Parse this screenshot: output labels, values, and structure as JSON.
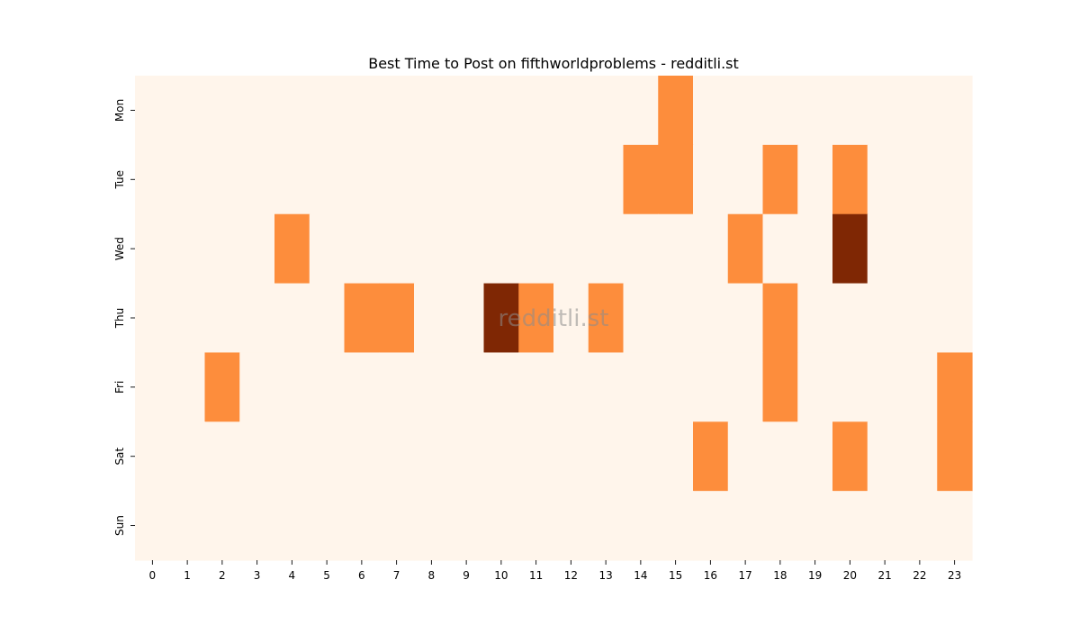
{
  "chart_data": {
    "type": "heatmap",
    "title": "Best Time to Post on fifthworldproblems - redditli.st",
    "xlabel": "",
    "ylabel": "",
    "x_categories": [
      "0",
      "1",
      "2",
      "3",
      "4",
      "5",
      "6",
      "7",
      "8",
      "9",
      "10",
      "11",
      "12",
      "13",
      "14",
      "15",
      "16",
      "17",
      "18",
      "19",
      "20",
      "21",
      "22",
      "23"
    ],
    "y_categories": [
      "Mon",
      "Tue",
      "Wed",
      "Thu",
      "Fri",
      "Sat",
      "Sun"
    ],
    "values": [
      [
        0,
        0,
        0,
        0,
        0,
        0,
        0,
        0,
        0,
        0,
        0,
        0,
        0,
        0,
        0,
        1,
        0,
        0,
        0,
        0,
        0,
        0,
        0,
        0
      ],
      [
        0,
        0,
        0,
        0,
        0,
        0,
        0,
        0,
        0,
        0,
        0,
        0,
        0,
        0,
        1,
        1,
        0,
        0,
        1,
        0,
        1,
        0,
        0,
        0
      ],
      [
        0,
        0,
        0,
        0,
        1,
        0,
        0,
        0,
        0,
        0,
        0,
        0,
        0,
        0,
        0,
        0,
        0,
        1,
        0,
        0,
        2,
        0,
        0,
        0
      ],
      [
        0,
        0,
        0,
        0,
        0,
        0,
        1,
        1,
        0,
        0,
        2,
        1,
        0,
        1,
        0,
        0,
        0,
        0,
        1,
        0,
        0,
        0,
        0,
        0
      ],
      [
        0,
        0,
        1,
        0,
        0,
        0,
        0,
        0,
        0,
        0,
        0,
        0,
        0,
        0,
        0,
        0,
        0,
        0,
        1,
        0,
        0,
        0,
        0,
        1
      ],
      [
        0,
        0,
        0,
        0,
        0,
        0,
        0,
        0,
        0,
        0,
        0,
        0,
        0,
        0,
        0,
        0,
        1,
        0,
        0,
        0,
        1,
        0,
        0,
        1
      ],
      [
        0,
        0,
        0,
        0,
        0,
        0,
        0,
        0,
        0,
        0,
        0,
        0,
        0,
        0,
        0,
        0,
        0,
        0,
        0,
        0,
        0,
        0,
        0,
        0
      ]
    ],
    "value_range": [
      0,
      2
    ],
    "colormap": "Oranges",
    "colors": {
      "0": "#fff5eb",
      "1": "#fd8d3c",
      "2": "#7f2704"
    },
    "colorbar": false,
    "grid": false,
    "watermark": "redditli.st"
  }
}
